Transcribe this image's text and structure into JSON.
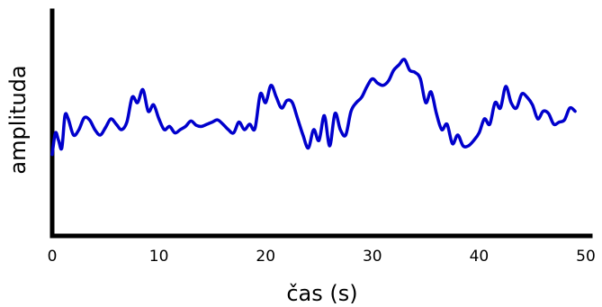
{
  "chart_data": {
    "type": "line",
    "title": "",
    "xlabel": "čas (s)",
    "ylabel": "amplituda",
    "xlim": [
      0,
      50
    ],
    "ylim": [
      -1,
      1
    ],
    "x_ticks": [
      0,
      10,
      20,
      30,
      40,
      50
    ],
    "y_ticks": [],
    "grid": false,
    "legend": "none",
    "colors": {
      "series": "#0000cc",
      "axes": "#000000"
    },
    "series": [
      {
        "x": [
          0,
          0.3,
          0.6,
          0.9,
          1.2,
          1.5,
          2.0,
          2.5,
          3.0,
          3.5,
          4.0,
          4.5,
          5.0,
          5.5,
          6.0,
          6.5,
          7.0,
          7.5,
          8.0,
          8.5,
          9.0,
          9.5,
          10.0,
          10.5,
          11.0,
          11.5,
          12.0,
          12.5,
          13.0,
          13.5,
          14.0,
          14.5,
          15.0,
          15.5,
          16.0,
          16.5,
          17.0,
          17.5,
          18.0,
          18.5,
          19.0,
          19.5,
          20.0,
          20.5,
          21.0,
          21.5,
          22.0,
          22.5,
          23.0,
          23.5,
          24.0,
          24.5,
          25.0,
          25.5,
          26.0,
          26.5,
          27.0,
          27.5,
          28.0,
          28.5,
          29.0,
          29.5,
          30.0,
          30.5,
          31.0,
          31.5,
          32.0,
          32.5,
          33.0,
          33.5,
          34.0,
          34.5,
          35.0,
          35.5,
          36.0,
          36.5,
          37.0,
          37.5,
          38.0,
          38.5,
          39.0,
          39.5,
          40.0,
          40.5,
          41.0,
          41.5,
          42.0,
          42.5,
          43.0,
          43.5,
          44.0,
          44.5,
          45.0,
          45.5,
          46.0,
          46.5,
          47.0,
          47.5,
          48.0,
          48.5,
          49.0
        ],
        "y": [
          -0.28,
          -0.08,
          -0.15,
          -0.22,
          0.08,
          0.05,
          -0.1,
          -0.05,
          0.06,
          0.04,
          -0.05,
          -0.1,
          -0.03,
          0.05,
          0.0,
          -0.05,
          0.02,
          0.25,
          0.2,
          0.32,
          0.12,
          0.18,
          0.05,
          -0.05,
          -0.02,
          -0.08,
          -0.05,
          -0.02,
          0.03,
          -0.01,
          -0.02,
          0.0,
          0.02,
          0.04,
          0.0,
          -0.05,
          -0.08,
          0.02,
          -0.05,
          0.0,
          -0.04,
          0.28,
          0.2,
          0.36,
          0.25,
          0.15,
          0.22,
          0.2,
          0.05,
          -0.1,
          -0.22,
          -0.05,
          -0.15,
          0.08,
          -0.2,
          0.1,
          -0.05,
          -0.1,
          0.12,
          0.2,
          0.25,
          0.35,
          0.42,
          0.38,
          0.36,
          0.4,
          0.5,
          0.55,
          0.6,
          0.5,
          0.48,
          0.42,
          0.2,
          0.3,
          0.1,
          -0.05,
          0.0,
          -0.18,
          -0.1,
          -0.2,
          -0.2,
          -0.15,
          -0.08,
          0.05,
          0.0,
          0.2,
          0.15,
          0.35,
          0.2,
          0.15,
          0.28,
          0.25,
          0.18,
          0.05,
          0.12,
          0.1,
          0.0,
          0.02,
          0.04,
          0.15,
          0.12
        ]
      }
    ]
  }
}
